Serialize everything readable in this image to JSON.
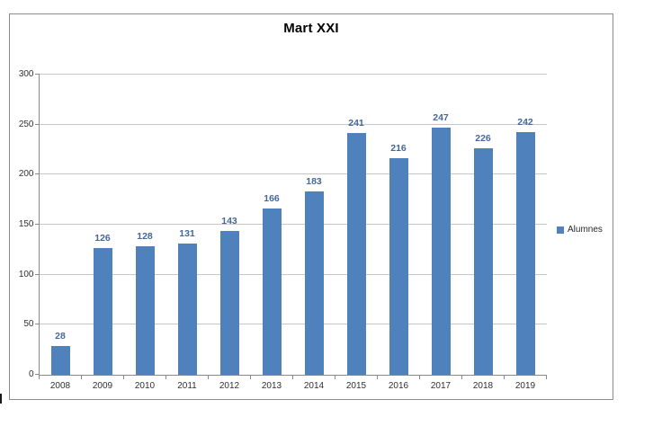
{
  "chart_title": "Mart XXI",
  "legend": {
    "position": "right",
    "items": [
      {
        "label": "Alumnes",
        "color": "#4f81bd"
      }
    ]
  },
  "colors": {
    "bar": "#4f81bd",
    "data_label": "#44679c",
    "gridline": "#c6c6c6",
    "axis": "#898989",
    "tick_label": "#303030",
    "chart_border": "#8c8c8c",
    "title": "#000000"
  },
  "chart_data": {
    "type": "bar",
    "title": "Mart XXI",
    "categories": [
      "2008",
      "2009",
      "2010",
      "2011",
      "2012",
      "2013",
      "2014",
      "2015",
      "2016",
      "2017",
      "2018",
      "2019"
    ],
    "series": [
      {
        "name": "Alumnes",
        "values": [
          28,
          126,
          128,
          131,
          143,
          166,
          183,
          241,
          216,
          247,
          226,
          242
        ]
      }
    ],
    "data_labels": [
      28,
      126,
      128,
      131,
      143,
      166,
      183,
      241,
      216,
      247,
      226,
      242
    ],
    "xlabel": "",
    "ylabel": "",
    "ylim": [
      0,
      300
    ],
    "yticks": [
      0,
      50,
      100,
      150,
      200,
      250,
      300
    ],
    "grid": true,
    "legend_position": "right"
  }
}
